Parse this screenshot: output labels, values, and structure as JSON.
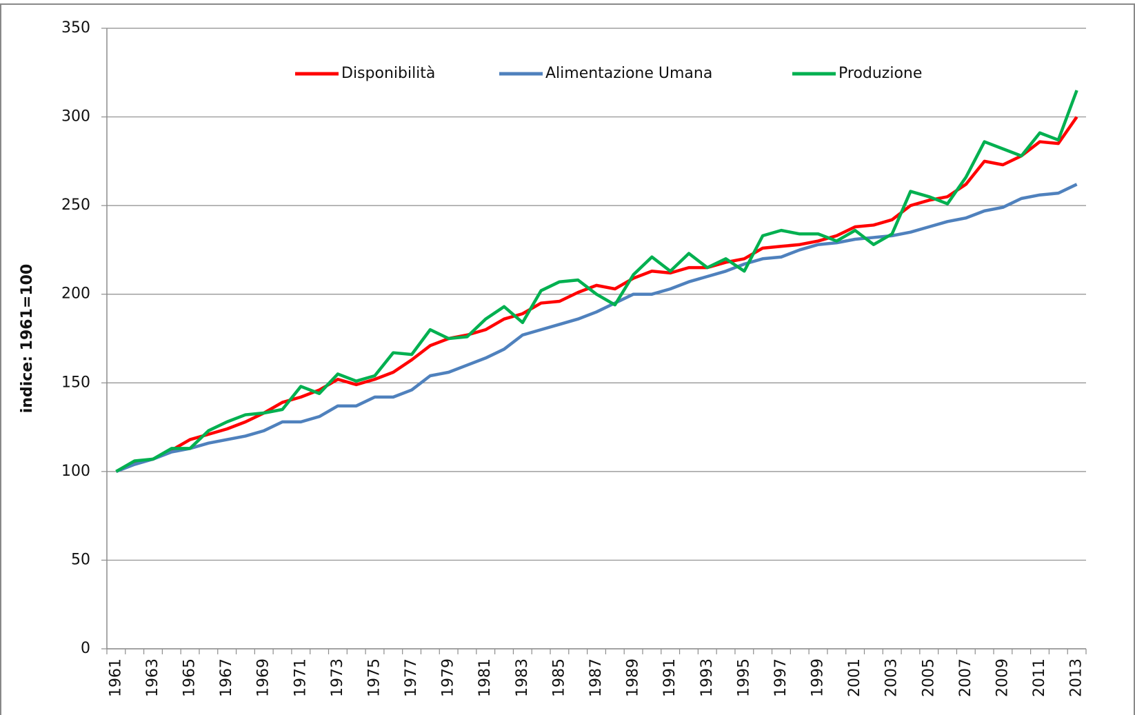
{
  "chart_data": {
    "type": "line",
    "y_label": "indice: 1961=100",
    "categories": [
      "1961",
      null,
      "1963",
      null,
      "1965",
      null,
      "1967",
      null,
      "1969",
      null,
      "1971",
      null,
      "1973",
      null,
      "1975",
      null,
      "1977",
      null,
      "1979",
      null,
      "1981",
      null,
      "1983",
      null,
      "1985",
      null,
      "1987",
      null,
      "1989",
      null,
      "1991",
      null,
      "1993",
      null,
      "1995",
      null,
      "1997",
      null,
      "1999",
      null,
      "2001",
      null,
      "2003",
      null,
      "2005",
      null,
      "2007",
      null,
      "2009",
      null,
      "2011",
      null,
      "2013"
    ],
    "series": [
      {
        "name": "Disponibilità",
        "color": "#ff0000",
        "values": [
          100,
          105,
          107,
          112,
          118,
          121,
          124,
          128,
          133,
          139,
          142,
          146,
          152,
          149,
          152,
          156,
          163,
          171,
          175,
          177,
          180,
          186,
          189,
          195,
          196,
          201,
          205,
          203,
          209,
          213,
          212,
          215,
          215,
          218,
          220,
          226,
          227,
          228,
          230,
          233,
          238,
          239,
          242,
          250,
          253,
          255,
          262,
          275,
          273,
          278,
          286,
          285,
          300
        ]
      },
      {
        "name": "Alimentazione Umana",
        "color": "#4f81bd",
        "values": [
          100,
          104,
          107,
          111,
          113,
          116,
          118,
          120,
          123,
          128,
          128,
          131,
          137,
          137,
          142,
          142,
          146,
          154,
          156,
          160,
          164,
          169,
          177,
          180,
          183,
          186,
          190,
          195,
          200,
          200,
          203,
          207,
          210,
          213,
          217,
          220,
          221,
          225,
          228,
          229,
          231,
          232,
          233,
          235,
          238,
          241,
          243,
          247,
          249,
          254,
          256,
          257,
          262
        ]
      },
      {
        "name": "Produzione",
        "color": "#00b050",
        "values": [
          100,
          106,
          107,
          113,
          113,
          123,
          128,
          132,
          133,
          135,
          148,
          144,
          155,
          151,
          154,
          167,
          166,
          180,
          175,
          176,
          186,
          193,
          184,
          202,
          207,
          208,
          200,
          194,
          211,
          221,
          213,
          223,
          215,
          220,
          213,
          233,
          236,
          234,
          234,
          230,
          236,
          228,
          234,
          258,
          255,
          251,
          266,
          286,
          282,
          278,
          291,
          287,
          315
        ]
      }
    ],
    "ylim": [
      0,
      350
    ],
    "yticks": [
      0,
      50,
      100,
      150,
      200,
      250,
      300,
      350
    ],
    "grid": true,
    "legend": "top"
  }
}
